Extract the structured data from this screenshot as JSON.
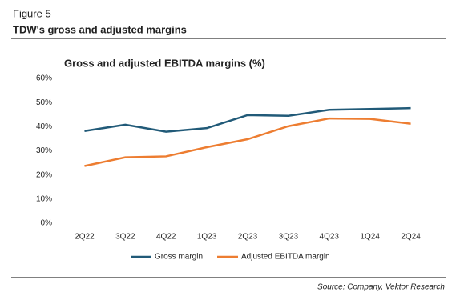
{
  "header": {
    "figure": "Figure 5",
    "title": "TDW's gross and adjusted margins"
  },
  "source": "Source: Company, Vektor Research",
  "chart_data": {
    "type": "line",
    "title": "Gross and adjusted EBITDA margins (%)",
    "categories": [
      "2Q22",
      "3Q22",
      "4Q22",
      "1Q23",
      "2Q23",
      "3Q23",
      "4Q23",
      "1Q24",
      "2Q24"
    ],
    "series": [
      {
        "name": "Gross margin",
        "color": "#215a78",
        "values": [
          38.2,
          40.8,
          37.9,
          39.4,
          44.8,
          44.5,
          47.0,
          47.3,
          47.7
        ]
      },
      {
        "name": "Adjusted EBITDA margin",
        "color": "#ed7d31",
        "values": [
          23.7,
          27.3,
          27.7,
          31.5,
          34.8,
          40.2,
          43.4,
          43.2,
          41.2
        ]
      }
    ],
    "ylim": [
      0,
      60
    ],
    "yticks": [
      {
        "value": 0,
        "label": "0%"
      },
      {
        "value": 10,
        "label": "10%"
      },
      {
        "value": 20,
        "label": "20%"
      },
      {
        "value": 30,
        "label": "30%"
      },
      {
        "value": 40,
        "label": "40%"
      },
      {
        "value": 50,
        "label": "50%"
      },
      {
        "value": 60,
        "label": "60%"
      }
    ],
    "grid": false,
    "legend": "bottom"
  }
}
